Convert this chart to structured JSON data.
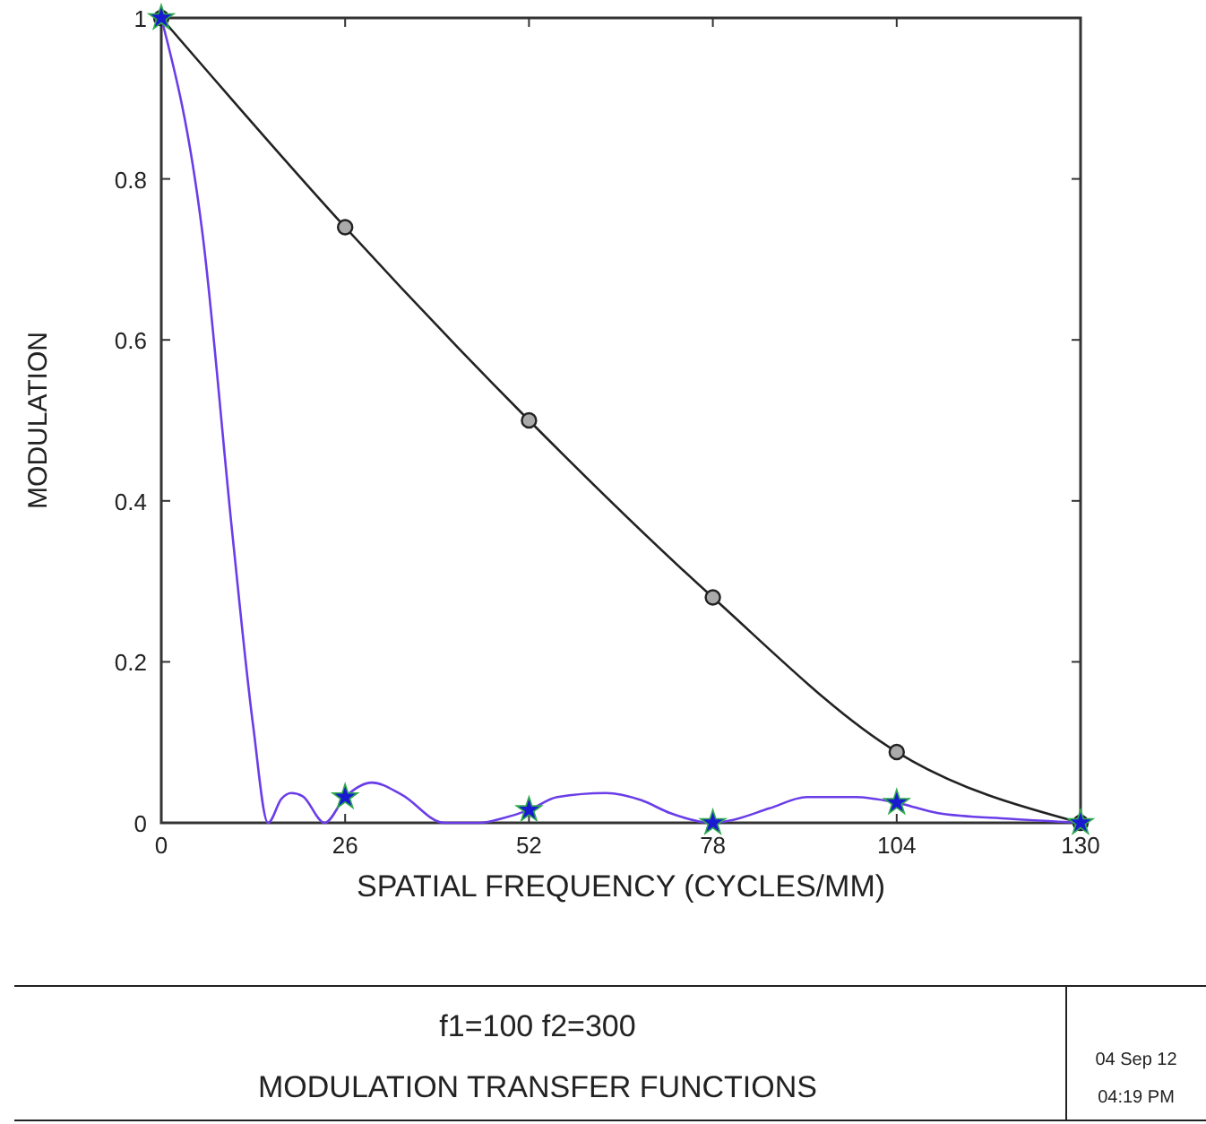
{
  "chart_data": {
    "type": "line",
    "title": "MODULATION TRANSFER FUNCTIONS",
    "subtitle": "f1=100 f2=300",
    "xlabel": "SPATIAL FREQUENCY (CYCLES/MM)",
    "ylabel": "MODULATION",
    "annotations": [
      "04 Sep 12",
      "04:19 PM"
    ],
    "xlim": [
      0,
      130
    ],
    "xticks": [
      0,
      26,
      52,
      78,
      104,
      130
    ],
    "ylim": [
      0,
      1
    ],
    "yticks": [
      0,
      0.2,
      0.4,
      0.6,
      0.8,
      1
    ],
    "grid": false,
    "line_style": "solid",
    "series": [
      {
        "color": "#222222",
        "marker": "circle",
        "x": [
          0,
          26,
          52,
          78,
          104,
          130
        ],
        "values": [
          1,
          0.74,
          0.5,
          0.28,
          0.088,
          0
        ]
      },
      {
        "color": "#6a3de8",
        "marker": "none",
        "x": [
          0,
          5.9,
          10.1,
          13,
          15.1,
          17,
          18.4,
          20,
          23.1,
          26,
          29.8,
          34,
          40,
          45,
          48,
          52,
          56,
          62.9,
          67.9,
          72,
          78,
          81,
          86,
          91.3,
          98.1,
          104,
          109.9,
          120,
          130
        ],
        "values": [
          1,
          0.727,
          0.355,
          0.12,
          0,
          0.03,
          0.037,
          0.033,
          0,
          0.032,
          0.05,
          0.035,
          0,
          0,
          0.005,
          0.016,
          0.032,
          0.037,
          0.028,
          0.012,
          0,
          0.004,
          0.018,
          0.032,
          0.032,
          0.025,
          0.012,
          0.005,
          0
        ]
      },
      {
        "type": "scatter",
        "color": "#1a1ad0",
        "marker": "star",
        "x": [
          0,
          26,
          52,
          78,
          104,
          130
        ],
        "values": [
          1,
          0.032,
          0.016,
          0,
          0.025,
          0
        ]
      }
    ]
  }
}
